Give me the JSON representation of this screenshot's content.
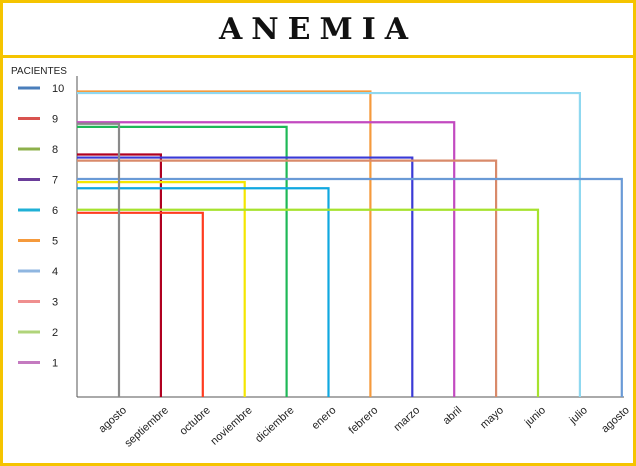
{
  "chart_data": {
    "type": "line",
    "title": "ANEMIA",
    "ylabel": "PACIENTES",
    "xlabel": "",
    "ylim": [
      0,
      10
    ],
    "categories": [
      "agosto",
      "septiembre",
      "octubre",
      "noviembre",
      "diciembre",
      "enero",
      "febrero",
      "marzo",
      "abril",
      "mayo",
      "junio",
      "julio",
      "agosto"
    ],
    "yticks": [
      10,
      9,
      8,
      7,
      6,
      5,
      4,
      3,
      2,
      1
    ],
    "legend_placement": "left",
    "grid": false,
    "legend_colors": [
      "#4a7ebb",
      "#d9534f",
      "#8db04b",
      "#6a3d9a",
      "#1fb0d6",
      "#f59a3c",
      "#8fb6e0",
      "#ef8f8f",
      "#b0d47a",
      "#c47ac0"
    ],
    "series": [
      {
        "start": 0,
        "end": 1,
        "y": 7.9,
        "color": "#b00020"
      },
      {
        "start": 0,
        "end": 2,
        "y": 6.0,
        "color": "#ff3b1f"
      },
      {
        "start": 0,
        "end": 3,
        "y": 7.0,
        "color": "#f4e600"
      },
      {
        "start": 0,
        "end": 4,
        "y": 8.8,
        "color": "#1fb857"
      },
      {
        "start": 0,
        "end": 5,
        "y": 6.8,
        "color": "#10a8e0"
      },
      {
        "start": 0,
        "end": 6,
        "y": 9.95,
        "color": "#f59a3c"
      },
      {
        "start": 0,
        "end": 7,
        "y": 7.8,
        "color": "#3a3ad6"
      },
      {
        "start": 0,
        "end": 8,
        "y": 8.95,
        "color": "#c24ac0"
      },
      {
        "start": 0,
        "end": 9,
        "y": 7.7,
        "color": "#d98a6a"
      },
      {
        "start": 0,
        "end": 10,
        "y": 6.1,
        "color": "#a6e22e"
      },
      {
        "start": 0,
        "end": 11,
        "y": 9.9,
        "color": "#8fd8f0"
      },
      {
        "start": 0,
        "end": 12,
        "y": 7.1,
        "color": "#6a9ad6"
      },
      {
        "start": 0,
        "end": 0,
        "y": 8.9,
        "color": "#8a8a8a"
      }
    ]
  }
}
